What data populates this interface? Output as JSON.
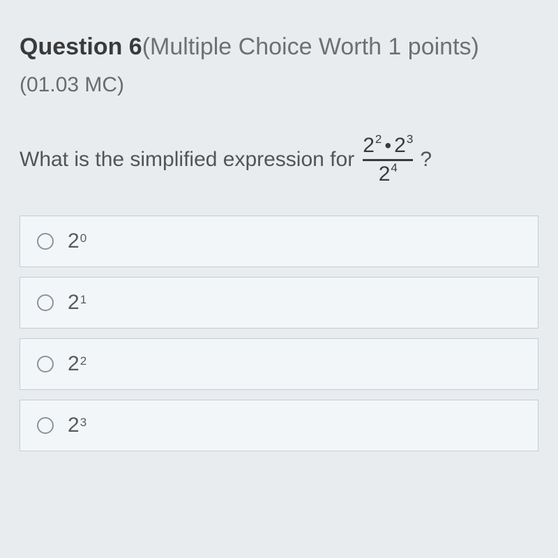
{
  "header": {
    "prefix": "Question ",
    "number": "6",
    "suffix": "(Multiple Choice Worth 1 points)"
  },
  "standard_code": "(01.03 MC)",
  "prompt": {
    "lead_text": "What is the simplified expression for",
    "trail_text": "?",
    "fraction": {
      "numerator_term1_base": "2",
      "numerator_term1_exp": "2",
      "numerator_dot": "•",
      "numerator_term2_base": "2",
      "numerator_term2_exp": "3",
      "denominator_base": "2",
      "denominator_exp": "4"
    }
  },
  "choices": [
    {
      "base": "2",
      "exp": "0"
    },
    {
      "base": "2",
      "exp": "1"
    },
    {
      "base": "2",
      "exp": "2"
    },
    {
      "base": "2",
      "exp": "3"
    }
  ],
  "colors": {
    "page_bg": "#e8ecef",
    "choice_bg": "#f3f6f8",
    "choice_border": "#c3cdd4",
    "text_primary": "#4a4a4a"
  }
}
